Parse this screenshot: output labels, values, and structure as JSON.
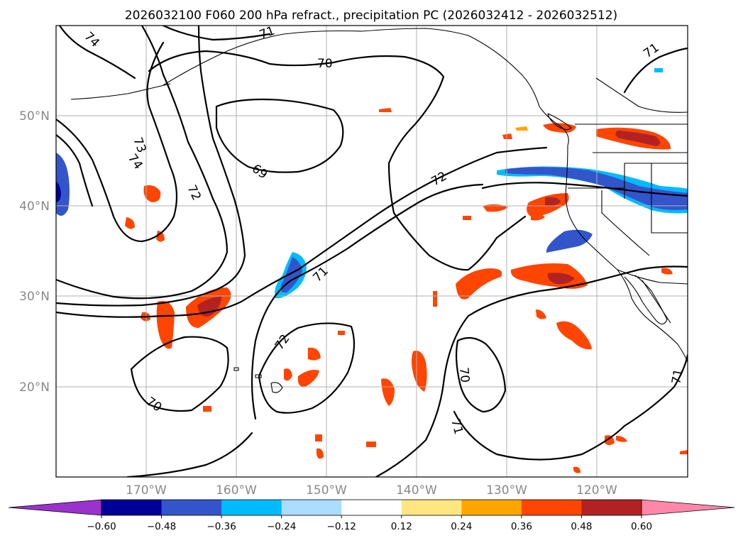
{
  "title": "2026032100 F060 200 hPa refract., precipitation PC (2026032412 - 2026032512)",
  "lat_labels": [
    "50°N",
    "40°N",
    "30°N",
    "20°N"
  ],
  "lon_labels": [
    "170°W",
    "160°W",
    "150°W",
    "140°W",
    "130°W",
    "120°W"
  ],
  "contour_labels": [
    "74",
    "71",
    "70",
    "73",
    "74",
    "72",
    "69",
    "72",
    "71",
    "72",
    "70",
    "70",
    "71",
    "71",
    "71"
  ],
  "colorbar": {
    "ticks": [
      "−0.60",
      "−0.48",
      "−0.36",
      "−0.24",
      "−0.12",
      "0.12",
      "0.24",
      "0.36",
      "0.48",
      "0.60"
    ],
    "colors": [
      "#9933cc",
      "#000099",
      "#3355cc",
      "#00bbff",
      "#aaddff",
      "#ffffff",
      "#ffe680",
      "#ffa500",
      "#ff4500",
      "#b22222",
      "#ff88aa"
    ]
  }
}
